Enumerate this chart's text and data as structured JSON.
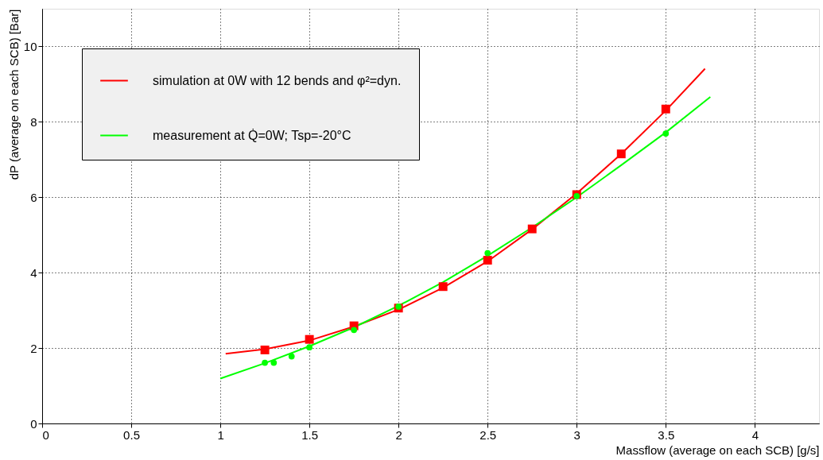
{
  "chart_data": {
    "type": "line",
    "xlabel": "Massflow (average on each SCB) [g/s]",
    "ylabel": "dP (average on each SCB) [Bar]",
    "xlim": [
      0,
      4.36
    ],
    "ylim": [
      0,
      11.0
    ],
    "xticks": [
      0,
      0.5,
      1,
      1.5,
      2,
      2.5,
      3,
      3.5,
      4
    ],
    "yticks": [
      0,
      2,
      4,
      6,
      8,
      10
    ],
    "grid": true,
    "legend": "top left",
    "series": [
      {
        "name": "simulation at 0W with 12 bends and φ²=dyn.",
        "marker": "none",
        "color": "#ff0000",
        "x": [
          1.03,
          1.25,
          1.5,
          1.75,
          2.0,
          2.25,
          2.5,
          2.75,
          3.0,
          3.25,
          3.5,
          3.72
        ],
        "values": [
          1.85,
          1.97,
          2.2,
          2.57,
          3.02,
          3.6,
          4.3,
          5.15,
          6.1,
          7.15,
          8.3,
          9.41
        ]
      },
      {
        "name": "measurement at Q̇=0W; Tsp=-20°C",
        "marker": "none",
        "color": "#00ff00",
        "x": [
          1.0,
          1.25,
          1.5,
          1.75,
          2.0,
          2.25,
          2.5,
          2.75,
          3.0,
          3.25,
          3.5,
          3.75
        ],
        "values": [
          1.19,
          1.6,
          2.05,
          2.55,
          3.12,
          3.75,
          4.45,
          5.2,
          6.0,
          6.85,
          7.72,
          8.66
        ]
      },
      {
        "type": "scatter",
        "marker": "square",
        "color": "#ff0000",
        "x": [
          1.25,
          1.5,
          1.75,
          2.0,
          2.25,
          2.5,
          2.75,
          3.0,
          3.25,
          3.5
        ],
        "values": [
          1.95,
          2.23,
          2.59,
          3.06,
          3.63,
          4.33,
          5.16,
          6.07,
          7.15,
          8.34
        ]
      },
      {
        "type": "scatter",
        "marker": "circle",
        "color": "#00ff00",
        "x": [
          1.25,
          1.3,
          1.4,
          1.5,
          1.75,
          2.0,
          2.5,
          3.0,
          3.5
        ],
        "values": [
          1.61,
          1.61,
          1.78,
          2.02,
          2.48,
          3.1,
          4.52,
          6.03,
          7.69
        ]
      }
    ]
  }
}
